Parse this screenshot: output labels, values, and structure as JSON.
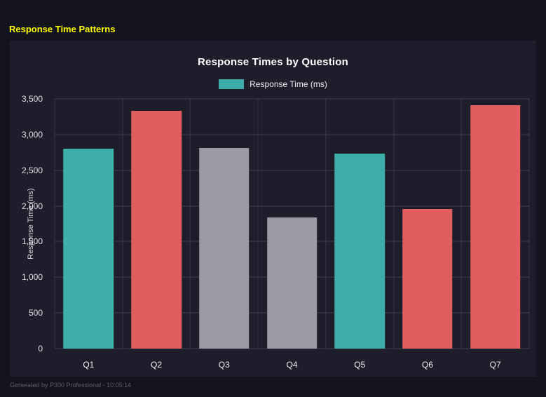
{
  "page": {
    "title": "Response Time Patterns",
    "footer": "Generated by P300 Professional - 10:05:14"
  },
  "chart_data": {
    "type": "bar",
    "title": "Response Times by Question",
    "legend": {
      "label": "Response Time (ms)",
      "color": "#3cb0a8"
    },
    "categories": [
      "Q1",
      "Q2",
      "Q3",
      "Q4",
      "Q5",
      "Q6",
      "Q7"
    ],
    "values": [
      2800,
      3330,
      2810,
      1840,
      2730,
      1960,
      3410
    ],
    "bar_colors": [
      "#3cb0a8",
      "#e25e5e",
      "#9a9aa2",
      "#9a9aa2",
      "#3cb0a8",
      "#e25e5e",
      "#e25e5e"
    ],
    "ylabel": "Response Time (ms)",
    "ylim": [
      0,
      3500
    ],
    "ytick_values": [
      0,
      500,
      1000,
      1500,
      2000,
      2500,
      3000,
      3500
    ],
    "ytick_labels": [
      "0",
      "500",
      "1,000",
      "1,500",
      "2,000",
      "2,500",
      "3,000",
      "3,500"
    ],
    "grid": true,
    "legend_position": "top",
    "bar_width_fraction": 0.74
  }
}
